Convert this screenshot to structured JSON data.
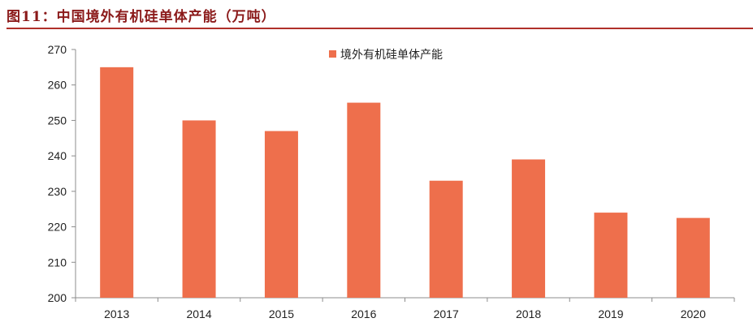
{
  "header": {
    "title": "图11：中国境外有机硅单体产能（万吨）"
  },
  "colors": {
    "title": "#8b1a1a",
    "rule": "#b0302a",
    "bar": "#ee6f4c",
    "axis": "#8c8c8c"
  },
  "chart_data": {
    "type": "bar",
    "title": "",
    "xlabel": "",
    "ylabel": "",
    "categories": [
      "2013",
      "2014",
      "2015",
      "2016",
      "2017",
      "2018",
      "2019",
      "2020"
    ],
    "series": [
      {
        "name": "境外有机硅单体产能",
        "values": [
          265,
          250,
          247,
          255,
          233,
          239,
          224,
          222.5
        ]
      }
    ],
    "ylim": [
      200,
      270
    ],
    "yticks": [
      "200",
      "210",
      "220",
      "230",
      "240",
      "250",
      "260",
      "270"
    ],
    "grid": false,
    "legend_position": "top-center"
  }
}
